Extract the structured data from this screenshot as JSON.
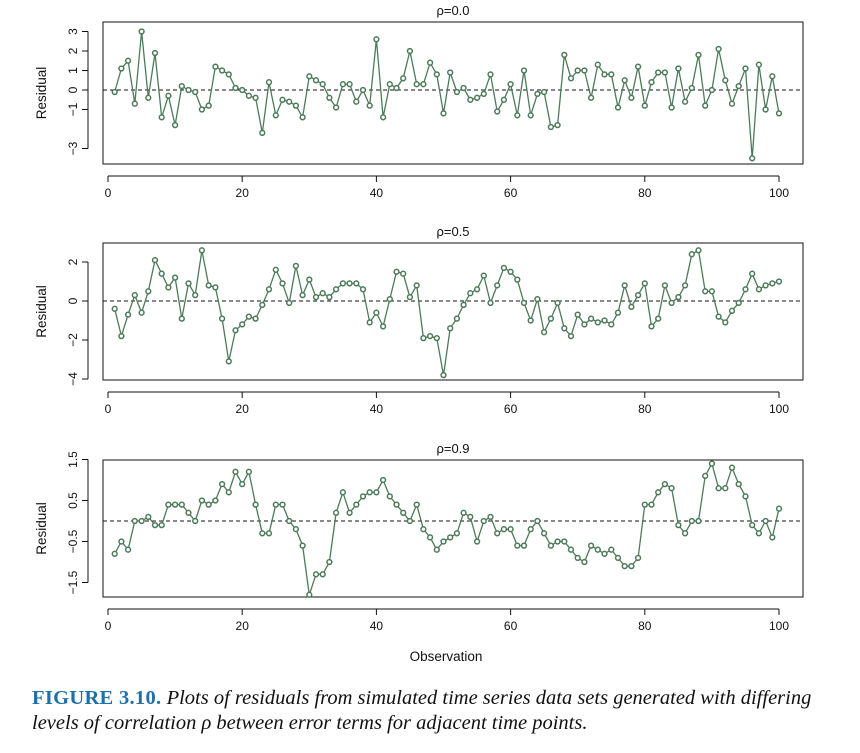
{
  "chart_data": [
    {
      "type": "line",
      "title": "ρ=0.0",
      "xlabel": "",
      "ylabel": "Residual",
      "xlim": [
        1,
        100
      ],
      "ylim": [
        -3.5,
        3.2
      ],
      "xticks": [
        "0",
        "20",
        "40",
        "60",
        "80",
        "100"
      ],
      "yticks": [
        "−3",
        "−1",
        "0",
        "1",
        "2",
        "3"
      ],
      "reference_line": 0,
      "series": [
        {
          "x": [
            1,
            2,
            3,
            4,
            5,
            6,
            7,
            8,
            9,
            10,
            11,
            12,
            13,
            14,
            15,
            16,
            17,
            18,
            19,
            20,
            21,
            22,
            23,
            24,
            25,
            26,
            27,
            28,
            29,
            30,
            31,
            32,
            33,
            34,
            35,
            36,
            37,
            38,
            39,
            40,
            41,
            42,
            43,
            44,
            45,
            46,
            47,
            48,
            49,
            50,
            51,
            52,
            53,
            54,
            55,
            56,
            57,
            58,
            59,
            60,
            61,
            62,
            63,
            64,
            65,
            66,
            67,
            68,
            69,
            70,
            71,
            72,
            73,
            74,
            75,
            76,
            77,
            78,
            79,
            80,
            81,
            82,
            83,
            84,
            85,
            86,
            87,
            88,
            89,
            90,
            91,
            92,
            93,
            94,
            95,
            96,
            97,
            98,
            99,
            100
          ],
          "values": [
            -0.1,
            1.1,
            1.5,
            -0.7,
            3.0,
            -0.4,
            1.9,
            -1.4,
            -0.3,
            -1.8,
            0.2,
            0.0,
            -0.1,
            -1.0,
            -0.8,
            1.2,
            1.0,
            0.8,
            0.1,
            0.0,
            -0.3,
            -0.4,
            -2.2,
            0.4,
            -1.3,
            -0.5,
            -0.6,
            -0.8,
            -1.4,
            0.7,
            0.5,
            0.3,
            -0.4,
            -0.9,
            0.3,
            0.3,
            -0.6,
            0.0,
            -0.8,
            2.6,
            -1.4,
            0.3,
            0.1,
            0.6,
            2.0,
            0.3,
            0.3,
            1.4,
            0.8,
            -1.2,
            0.9,
            -0.1,
            0.1,
            -0.5,
            -0.4,
            -0.2,
            0.8,
            -1.1,
            -0.5,
            0.3,
            -1.3,
            1.0,
            -1.3,
            -0.2,
            -0.1,
            -1.9,
            -1.8,
            1.8,
            0.6,
            1.0,
            1.0,
            -0.4,
            1.3,
            0.8,
            0.8,
            -0.9,
            0.5,
            -0.4,
            1.2,
            -0.8,
            0.4,
            0.9,
            0.9,
            -0.9,
            1.1,
            -0.6,
            0.1,
            1.8,
            -0.8,
            0.0,
            2.1,
            0.5,
            -0.7,
            0.2,
            1.1,
            -3.5,
            1.3,
            -1.0,
            0.7,
            -1.2
          ]
        }
      ]
    },
    {
      "type": "line",
      "title": "ρ=0.5",
      "xlabel": "",
      "ylabel": "Residual",
      "xlim": [
        1,
        100
      ],
      "ylim": [
        -3.8,
        2.6
      ],
      "xticks": [
        "0",
        "20",
        "40",
        "60",
        "80",
        "100"
      ],
      "yticks": [
        "−4",
        "−2",
        "0",
        "2"
      ],
      "reference_line": 0,
      "series": [
        {
          "x": [
            1,
            2,
            3,
            4,
            5,
            6,
            7,
            8,
            9,
            10,
            11,
            12,
            13,
            14,
            15,
            16,
            17,
            18,
            19,
            20,
            21,
            22,
            23,
            24,
            25,
            26,
            27,
            28,
            29,
            30,
            31,
            32,
            33,
            34,
            35,
            36,
            37,
            38,
            39,
            40,
            41,
            42,
            43,
            44,
            45,
            46,
            47,
            48,
            49,
            50,
            51,
            52,
            53,
            54,
            55,
            56,
            57,
            58,
            59,
            60,
            61,
            62,
            63,
            64,
            65,
            66,
            67,
            68,
            69,
            70,
            71,
            72,
            73,
            74,
            75,
            76,
            77,
            78,
            79,
            80,
            81,
            82,
            83,
            84,
            85,
            86,
            87,
            88,
            89,
            90,
            91,
            92,
            93,
            94,
            95,
            96,
            97,
            98,
            99,
            100
          ],
          "values": [
            -0.4,
            -1.8,
            -0.7,
            0.3,
            -0.6,
            0.5,
            2.1,
            1.4,
            0.7,
            1.2,
            -0.9,
            0.9,
            0.3,
            2.6,
            0.8,
            0.7,
            -0.9,
            -3.1,
            -1.5,
            -1.2,
            -0.8,
            -0.9,
            -0.2,
            0.6,
            1.6,
            0.9,
            -0.1,
            1.8,
            0.3,
            1.1,
            0.2,
            0.4,
            0.2,
            0.6,
            0.9,
            0.9,
            0.9,
            0.6,
            -1.1,
            -0.6,
            -1.3,
            0.1,
            1.5,
            1.4,
            0.2,
            0.8,
            -1.9,
            -1.8,
            -1.9,
            -3.8,
            -1.4,
            -0.9,
            -0.2,
            0.4,
            0.6,
            1.3,
            -0.1,
            0.8,
            1.7,
            1.5,
            1.1,
            -0.1,
            -1.0,
            0.1,
            -1.6,
            -0.9,
            -0.1,
            -1.4,
            -1.8,
            -0.7,
            -1.2,
            -0.9,
            -1.1,
            -1.0,
            -1.2,
            -0.6,
            0.8,
            -0.3,
            0.3,
            0.9,
            -1.3,
            -0.9,
            0.8,
            -0.1,
            0.2,
            0.8,
            2.4,
            2.6,
            0.5,
            0.5,
            -0.8,
            -1.1,
            -0.5,
            -0.1,
            0.6,
            1.4,
            0.6,
            0.8,
            0.9,
            1.0
          ]
        }
      ]
    },
    {
      "type": "line",
      "title": "ρ=0.9",
      "xlabel": "Observation",
      "ylabel": "Residual",
      "xlim": [
        1,
        100
      ],
      "ylim": [
        -1.8,
        1.4
      ],
      "xticks": [
        "0",
        "20",
        "40",
        "60",
        "80",
        "100"
      ],
      "yticks": [
        "−1.5",
        "−0.5",
        "0.5",
        "1.5"
      ],
      "reference_line": 0,
      "series": [
        {
          "x": [
            1,
            2,
            3,
            4,
            5,
            6,
            7,
            8,
            9,
            10,
            11,
            12,
            13,
            14,
            15,
            16,
            17,
            18,
            19,
            20,
            21,
            22,
            23,
            24,
            25,
            26,
            27,
            28,
            29,
            30,
            31,
            32,
            33,
            34,
            35,
            36,
            37,
            38,
            39,
            40,
            41,
            42,
            43,
            44,
            45,
            46,
            47,
            48,
            49,
            50,
            51,
            52,
            53,
            54,
            55,
            56,
            57,
            58,
            59,
            60,
            61,
            62,
            63,
            64,
            65,
            66,
            67,
            68,
            69,
            70,
            71,
            72,
            73,
            74,
            75,
            76,
            77,
            78,
            79,
            80,
            81,
            82,
            83,
            84,
            85,
            86,
            87,
            88,
            89,
            90,
            91,
            92,
            93,
            94,
            95,
            96,
            97,
            98,
            99,
            100
          ],
          "values": [
            -0.8,
            -0.5,
            -0.7,
            0.0,
            0.0,
            0.1,
            -0.1,
            -0.1,
            0.4,
            0.4,
            0.4,
            0.2,
            0.0,
            0.5,
            0.4,
            0.5,
            0.9,
            0.7,
            1.2,
            0.9,
            1.2,
            0.4,
            -0.3,
            -0.3,
            0.4,
            0.4,
            0.0,
            -0.2,
            -0.6,
            -1.8,
            -1.3,
            -1.3,
            -1.0,
            0.2,
            0.7,
            0.2,
            0.4,
            0.6,
            0.7,
            0.7,
            1.0,
            0.6,
            0.4,
            0.2,
            0.0,
            0.4,
            -0.2,
            -0.4,
            -0.7,
            -0.5,
            -0.4,
            -0.3,
            0.2,
            0.1,
            -0.5,
            0.0,
            0.1,
            -0.3,
            -0.2,
            -0.2,
            -0.6,
            -0.6,
            -0.2,
            0.0,
            -0.3,
            -0.6,
            -0.5,
            -0.5,
            -0.7,
            -0.9,
            -1.0,
            -0.6,
            -0.7,
            -0.8,
            -0.7,
            -0.9,
            -1.1,
            -1.1,
            -0.9,
            0.4,
            0.4,
            0.7,
            0.9,
            0.8,
            -0.1,
            -0.3,
            0.0,
            0.0,
            1.1,
            1.4,
            0.8,
            0.8,
            1.3,
            0.9,
            0.6,
            -0.1,
            -0.3,
            0.0,
            -0.4,
            0.3
          ]
        }
      ]
    }
  ],
  "caption": {
    "label": "FIGURE 3.10.",
    "text": " Plots of residuals from simulated time series data sets generated with differing levels of correlation ρ between error terms for adjacent time points."
  },
  "colors": {
    "series": "#4d7a5a",
    "axes": "#111111",
    "reference": "#111111"
  }
}
